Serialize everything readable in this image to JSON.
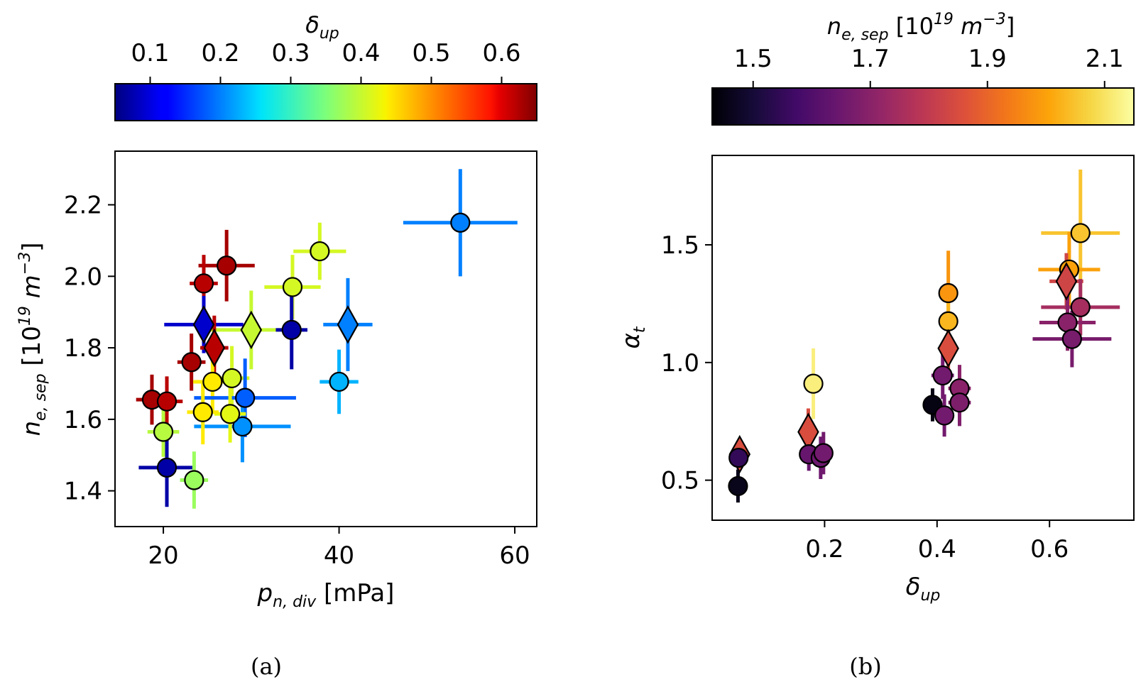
{
  "figure": {
    "panel_labels": [
      "(a)",
      "(b)"
    ]
  },
  "chart_data": [
    {
      "type": "scatter",
      "panel": "(a)",
      "xlabel": "p_{n,div} [mPa]",
      "xlabel_parts": {
        "base": "p",
        "sub": "n, div",
        "unit": " [mPa]"
      },
      "ylabel": "n_{e,sep} [10^{19} m^{-3}]",
      "ylabel_parts": {
        "base": "n",
        "sub": "e, sep",
        "unit_pre": " [10",
        "unit_sup": "19",
        "unit_mid": " m",
        "unit_sup2": "−3",
        "unit_post": "]"
      },
      "xlim": [
        14.5,
        62.5
      ],
      "ylim": [
        1.3,
        2.35
      ],
      "xticks": [
        20,
        40,
        60
      ],
      "xtick_labels": [
        "20",
        "40",
        "60"
      ],
      "yticks": [
        1.4,
        1.6,
        1.8,
        2.0,
        2.2
      ],
      "ytick_labels": [
        "1.4",
        "1.6",
        "1.8",
        "2.0",
        "2.2"
      ],
      "grid": false,
      "colorbar": {
        "label": "δup",
        "label_parts": {
          "base": "δ",
          "sub": "up"
        },
        "colormap": "jet",
        "range": [
          0.05,
          0.65
        ],
        "ticks": [
          0.1,
          0.2,
          0.3,
          0.4,
          0.5,
          0.6
        ],
        "tick_labels": [
          "0.1",
          "0.2",
          "0.3",
          "0.4",
          "0.5",
          "0.6"
        ],
        "placement": "top"
      },
      "points": [
        {
          "x": 53.8,
          "y": 2.15,
          "xerr": 6.5,
          "yerr": 0.15,
          "c": 0.2,
          "marker": "circle"
        },
        {
          "x": 37.8,
          "y": 2.07,
          "xerr": 3.0,
          "yerr": 0.08,
          "c": 0.41,
          "marker": "circle"
        },
        {
          "x": 34.7,
          "y": 1.97,
          "xerr": 3.2,
          "yerr": 0.09,
          "c": 0.41,
          "marker": "circle"
        },
        {
          "x": 27.2,
          "y": 2.03,
          "xerr": 3.2,
          "yerr": 0.1,
          "c": 0.63,
          "marker": "circle"
        },
        {
          "x": 24.6,
          "y": 1.98,
          "xerr": 1.6,
          "yerr": 0.08,
          "c": 0.62,
          "marker": "circle"
        },
        {
          "x": 24.6,
          "y": 1.865,
          "xerr": 4.5,
          "yerr": 0.08,
          "c": 0.09,
          "marker": "diamond"
        },
        {
          "x": 30.0,
          "y": 1.85,
          "xerr": 6.0,
          "yerr": 0.11,
          "c": 0.4,
          "marker": "diamond"
        },
        {
          "x": 34.6,
          "y": 1.85,
          "xerr": 1.8,
          "yerr": 0.11,
          "c": 0.07,
          "marker": "circle"
        },
        {
          "x": 41.0,
          "y": 1.865,
          "xerr": 2.8,
          "yerr": 0.13,
          "c": 0.2,
          "marker": "diamond"
        },
        {
          "x": 40.0,
          "y": 1.705,
          "xerr": 2.2,
          "yerr": 0.09,
          "c": 0.23,
          "marker": "circle"
        },
        {
          "x": 25.8,
          "y": 1.8,
          "xerr": 1.6,
          "yerr": 0.09,
          "c": 0.62,
          "marker": "diamond"
        },
        {
          "x": 23.2,
          "y": 1.76,
          "xerr": 1.6,
          "yerr": 0.08,
          "c": 0.63,
          "marker": "circle"
        },
        {
          "x": 25.6,
          "y": 1.705,
          "xerr": 2.2,
          "yerr": 0.09,
          "c": 0.44,
          "marker": "circle"
        },
        {
          "x": 27.8,
          "y": 1.715,
          "xerr": 2.0,
          "yerr": 0.09,
          "c": 0.41,
          "marker": "circle"
        },
        {
          "x": 29.3,
          "y": 1.66,
          "xerr": 5.8,
          "yerr": 0.11,
          "c": 0.18,
          "marker": "circle"
        },
        {
          "x": 29.0,
          "y": 1.58,
          "xerr": 5.5,
          "yerr": 0.1,
          "c": 0.21,
          "marker": "circle"
        },
        {
          "x": 27.6,
          "y": 1.615,
          "xerr": 1.8,
          "yerr": 0.08,
          "c": 0.42,
          "marker": "circle"
        },
        {
          "x": 24.5,
          "y": 1.62,
          "xerr": 1.8,
          "yerr": 0.09,
          "c": 0.44,
          "marker": "circle"
        },
        {
          "x": 18.7,
          "y": 1.655,
          "xerr": 1.8,
          "yerr": 0.07,
          "c": 0.63,
          "marker": "circle"
        },
        {
          "x": 20.4,
          "y": 1.65,
          "xerr": 1.8,
          "yerr": 0.07,
          "c": 0.62,
          "marker": "circle"
        },
        {
          "x": 20.0,
          "y": 1.565,
          "xerr": 1.8,
          "yerr": 0.07,
          "c": 0.39,
          "marker": "circle"
        },
        {
          "x": 20.4,
          "y": 1.465,
          "xerr": 3.2,
          "yerr": 0.11,
          "c": 0.07,
          "marker": "circle"
        },
        {
          "x": 23.5,
          "y": 1.43,
          "xerr": 1.6,
          "yerr": 0.08,
          "c": 0.37,
          "marker": "circle"
        }
      ]
    },
    {
      "type": "scatter",
      "panel": "(b)",
      "xlabel": "δup",
      "xlabel_parts": {
        "base": "δ",
        "sub": "up"
      },
      "ylabel": "αt",
      "ylabel_parts": {
        "base": "α",
        "sub": "t"
      },
      "xlim": [
        0.0,
        0.75
      ],
      "ylim": [
        0.33,
        1.88
      ],
      "xticks": [
        0.2,
        0.4,
        0.6
      ],
      "xtick_labels": [
        "0.2",
        "0.4",
        "0.6"
      ],
      "yticks": [
        0.5,
        1.0,
        1.5
      ],
      "ytick_labels": [
        "0.5",
        "1.0",
        "1.5"
      ],
      "grid": false,
      "colorbar": {
        "label": "n_{e,sep} [10^{19} m^{-3}]",
        "label_parts": {
          "base": "n",
          "sub": "e, sep",
          "unit_pre": " [10",
          "unit_sup": "19",
          "unit_mid": " m",
          "unit_sup2": "−3",
          "unit_post": "]"
        },
        "colormap": "inferno",
        "range": [
          1.43,
          2.15
        ],
        "ticks": [
          1.5,
          1.7,
          1.9,
          2.1
        ],
        "tick_labels": [
          "1.5",
          "1.7",
          "1.9",
          "2.1"
        ],
        "placement": "top"
      },
      "points": [
        {
          "x": 0.655,
          "y": 1.55,
          "xerr": 0.07,
          "yerr": 0.27,
          "c": 2.05,
          "marker": "circle"
        },
        {
          "x": 0.635,
          "y": 1.395,
          "xerr": 0.055,
          "yerr": 0.16,
          "c": 2.0,
          "marker": "circle"
        },
        {
          "x": 0.63,
          "y": 1.345,
          "xerr": 0.03,
          "yerr": 0.12,
          "c": 1.83,
          "marker": "diamond"
        },
        {
          "x": 0.655,
          "y": 1.235,
          "xerr": 0.07,
          "yerr": 0.12,
          "c": 1.75,
          "marker": "circle"
        },
        {
          "x": 0.632,
          "y": 1.17,
          "xerr": 0.05,
          "yerr": 0.12,
          "c": 1.7,
          "marker": "circle"
        },
        {
          "x": 0.64,
          "y": 1.1,
          "xerr": 0.07,
          "yerr": 0.12,
          "c": 1.67,
          "marker": "circle"
        },
        {
          "x": 0.42,
          "y": 1.295,
          "xerr": 0.01,
          "yerr": 0.18,
          "c": 1.98,
          "marker": "circle"
        },
        {
          "x": 0.42,
          "y": 1.175,
          "xerr": 0.01,
          "yerr": 0.14,
          "c": 2.03,
          "marker": "circle"
        },
        {
          "x": 0.42,
          "y": 1.06,
          "xerr": 0.015,
          "yerr": 0.12,
          "c": 1.85,
          "marker": "diamond"
        },
        {
          "x": 0.41,
          "y": 0.945,
          "xerr": 0.02,
          "yerr": 0.1,
          "c": 1.66,
          "marker": "circle"
        },
        {
          "x": 0.44,
          "y": 0.89,
          "xerr": 0.02,
          "yerr": 0.1,
          "c": 1.7,
          "marker": "circle"
        },
        {
          "x": 0.44,
          "y": 0.83,
          "xerr": 0.02,
          "yerr": 0.1,
          "c": 1.68,
          "marker": "circle"
        },
        {
          "x": 0.392,
          "y": 0.82,
          "xerr": 0.012,
          "yerr": 0.07,
          "c": 1.45,
          "marker": "circle"
        },
        {
          "x": 0.413,
          "y": 0.775,
          "xerr": 0.01,
          "yerr": 0.09,
          "c": 1.66,
          "marker": "circle"
        },
        {
          "x": 0.18,
          "y": 0.91,
          "xerr": 0.007,
          "yerr": 0.15,
          "c": 2.12,
          "marker": "circle"
        },
        {
          "x": 0.171,
          "y": 0.705,
          "xerr": 0.007,
          "yerr": 0.1,
          "c": 1.85,
          "marker": "diamond"
        },
        {
          "x": 0.172,
          "y": 0.61,
          "xerr": 0.01,
          "yerr": 0.07,
          "c": 1.64,
          "marker": "circle"
        },
        {
          "x": 0.193,
          "y": 0.595,
          "xerr": 0.01,
          "yerr": 0.09,
          "c": 1.65,
          "marker": "circle"
        },
        {
          "x": 0.198,
          "y": 0.615,
          "xerr": 0.01,
          "yerr": 0.09,
          "c": 1.66,
          "marker": "circle"
        },
        {
          "x": 0.049,
          "y": 0.61,
          "xerr": 0.004,
          "yerr": 0.06,
          "c": 1.85,
          "marker": "diamond"
        },
        {
          "x": 0.047,
          "y": 0.595,
          "xerr": 0.004,
          "yerr": 0.05,
          "c": 1.55,
          "marker": "circle"
        },
        {
          "x": 0.046,
          "y": 0.475,
          "xerr": 0.004,
          "yerr": 0.07,
          "c": 1.46,
          "marker": "circle"
        }
      ]
    }
  ]
}
